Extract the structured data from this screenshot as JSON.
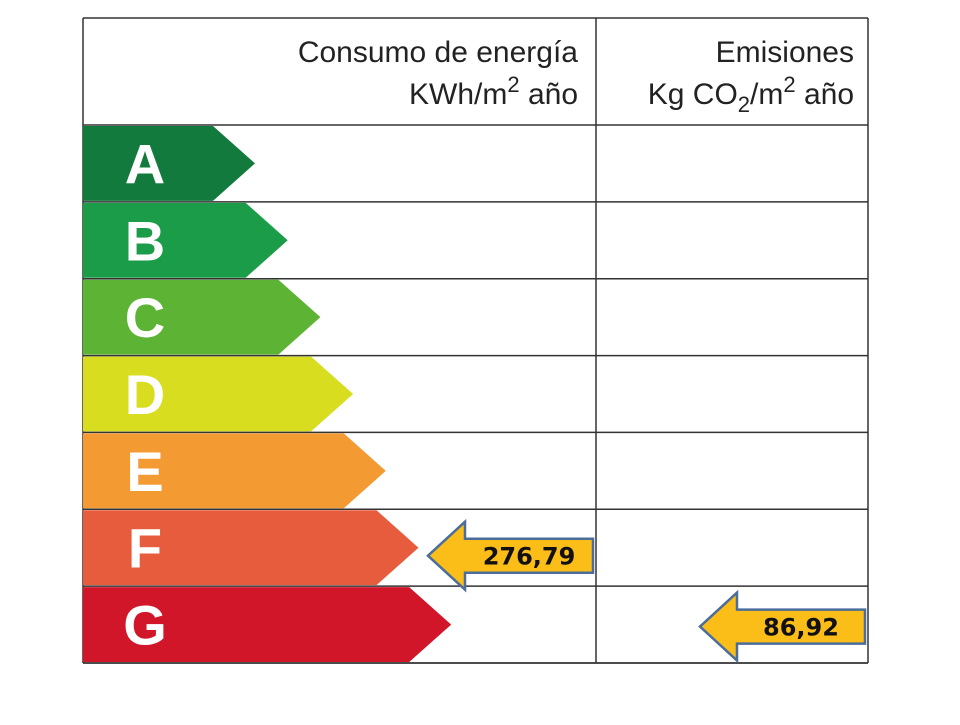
{
  "header": {
    "energy": {
      "title": "Consumo de energía",
      "unit": [
        {
          "text": "KWh/m"
        },
        {
          "text": "2",
          "pos": "sup"
        },
        {
          "text": " año"
        }
      ]
    },
    "emissions": {
      "title": "Emisiones",
      "unit": [
        {
          "text": "Kg CO"
        },
        {
          "text": "2",
          "pos": "sub"
        },
        {
          "text": "/m"
        },
        {
          "text": "2",
          "pos": "sup"
        },
        {
          "text": " año"
        }
      ]
    }
  },
  "rows": [
    {
      "letter": "A",
      "color": "#137a3e"
    },
    {
      "letter": "B",
      "color": "#1a9c48"
    },
    {
      "letter": "C",
      "color": "#5db333"
    },
    {
      "letter": "D",
      "color": "#d8dd1f"
    },
    {
      "letter": "E",
      "color": "#f39a33"
    },
    {
      "letter": "F",
      "color": "#e85c3e",
      "energy": "276,79"
    },
    {
      "letter": "G",
      "color": "#d1162a",
      "emissions": "86,92"
    }
  ]
}
